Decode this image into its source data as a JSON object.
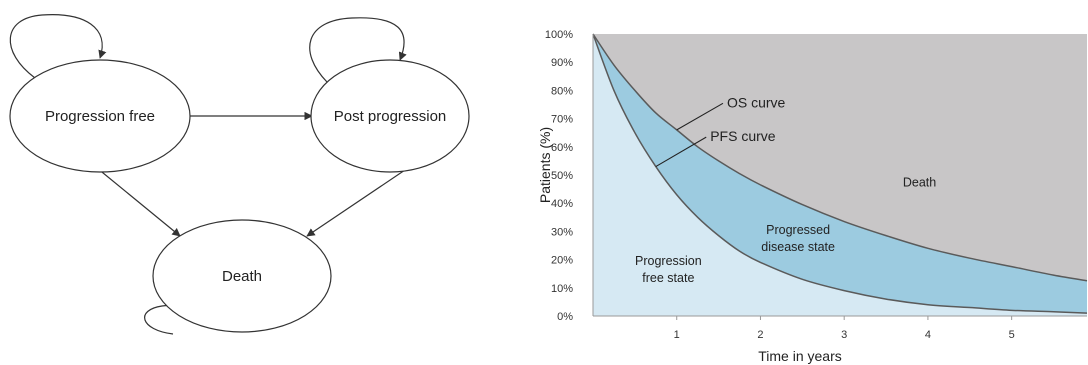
{
  "diagram": {
    "nodes": [
      {
        "id": "pf",
        "label": "Progression free"
      },
      {
        "id": "pp",
        "label": "Post progression"
      },
      {
        "id": "death",
        "label": "Death"
      }
    ],
    "edges": [
      {
        "from": "pf",
        "to": "pp"
      },
      {
        "from": "pf",
        "to": "death"
      },
      {
        "from": "pp",
        "to": "death"
      },
      {
        "from": "pf",
        "to": "pf"
      },
      {
        "from": "pp",
        "to": "pp"
      },
      {
        "from": "death",
        "to": "death"
      }
    ]
  },
  "chart_data": {
    "type": "area",
    "xlabel": "Time in years",
    "ylabel": "Patients (%)",
    "xlim": [
      0,
      5.9
    ],
    "ylim": [
      0,
      100
    ],
    "x_ticks": [
      "1",
      "2",
      "3",
      "4",
      "5"
    ],
    "y_ticks": [
      "100%",
      "90%",
      "80%",
      "70%",
      "60%",
      "50%",
      "40%",
      "30%",
      "20%",
      "10%",
      "0%"
    ],
    "x": [
      0,
      0.25,
      0.5,
      0.75,
      1,
      1.25,
      1.5,
      1.75,
      2,
      2.5,
      3,
      3.5,
      4,
      4.5,
      5,
      5.5,
      5.9
    ],
    "series": [
      {
        "name": "OS curve",
        "values": [
          100,
          89,
          80,
          72,
          66,
          60,
          55,
          50.5,
          46.5,
          39.5,
          33.5,
          28.5,
          24,
          20.5,
          17.5,
          14.5,
          12.5
        ]
      },
      {
        "name": "PFS curve",
        "values": [
          100,
          80,
          65,
          53,
          43,
          35,
          28.5,
          23,
          19,
          13,
          9,
          6,
          4,
          3,
          2,
          1.5,
          1
        ]
      }
    ],
    "regions": [
      {
        "label_lines": [
          "Death"
        ],
        "x": 3.9,
        "y": 46,
        "color": "#c8c6c7"
      },
      {
        "label_lines": [
          "Progressed",
          "disease state"
        ],
        "x": 2.45,
        "y": 29,
        "color": "#9ccbe0"
      },
      {
        "label_lines": [
          "Progression",
          "free state"
        ],
        "x": 0.9,
        "y": 18,
        "color": "#d6e9f3"
      }
    ],
    "annotations": [
      {
        "text": "OS curve",
        "text_x": 1.6,
        "text_y": 74,
        "arrow_to_x": 1.0,
        "arrow_to_y": 66
      },
      {
        "text": "PFS curve",
        "text_x": 1.4,
        "text_y": 62,
        "arrow_to_x": 0.75,
        "arrow_to_y": 53
      }
    ],
    "colors": {
      "death_fill": "#c8c6c7",
      "progressed_fill": "#9ccbe0",
      "pf_fill": "#d6e9f3",
      "curve_stroke": "#5a5a5a"
    }
  }
}
